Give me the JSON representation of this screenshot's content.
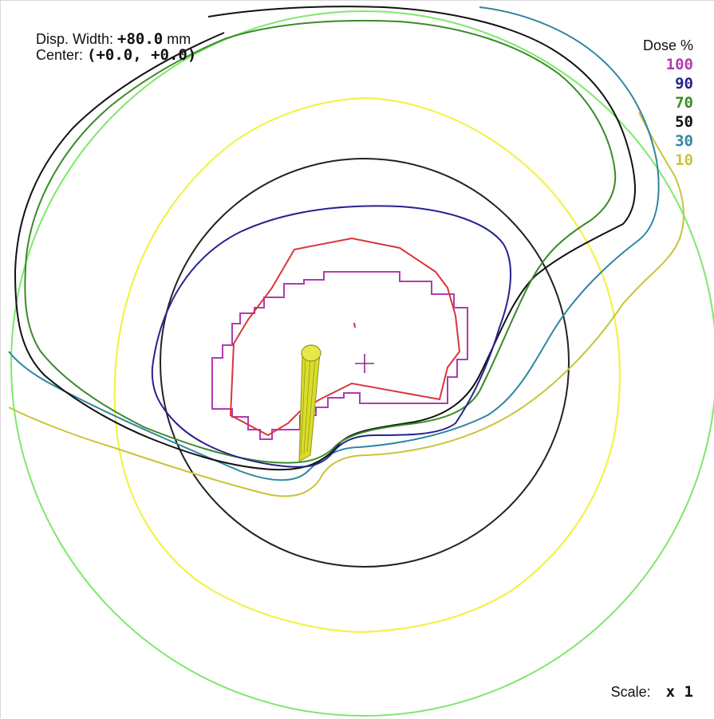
{
  "display": {
    "width_label": "Disp. Width:",
    "width_value": "+80.0",
    "width_unit": "mm",
    "center_label": "Center:",
    "center_value": "(+0.0, +0.0)"
  },
  "legend": {
    "title": "Dose %",
    "levels": [
      {
        "value": "100",
        "color": "#b23bb0"
      },
      {
        "value": "90",
        "color": "#25238f"
      },
      {
        "value": "70",
        "color": "#3a8a2a"
      },
      {
        "value": "50",
        "color": "#111111"
      },
      {
        "value": "30",
        "color": "#2f86a0"
      },
      {
        "value": "10",
        "color": "#c8c43a"
      }
    ]
  },
  "scale": {
    "label": "Scale:",
    "value": "x 1"
  },
  "colors": {
    "outer_circle": "#7de86a",
    "isodose_ring": "#f2f24a",
    "reference_circle": "#222222",
    "prescription": "#d9363a",
    "center_cross": "#8a2b8a",
    "catheter": "#bcc21e"
  }
}
